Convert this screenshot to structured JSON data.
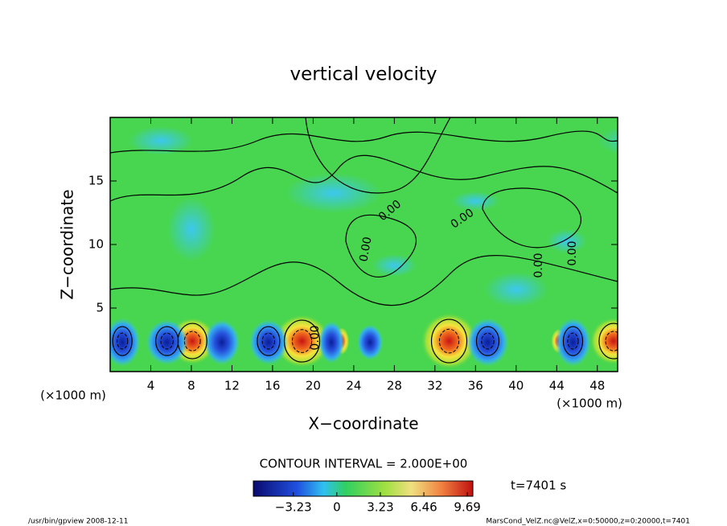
{
  "chart_data": {
    "type": "contour",
    "title": "vertical velocity",
    "x_label": "X−coordinate",
    "y_label": "Z−coordinate",
    "x_unit": "(×1000 m)",
    "xlim": [
      0,
      50
    ],
    "xticks": [
      4,
      8,
      12,
      16,
      20,
      24,
      28,
      32,
      36,
      40,
      44,
      48
    ],
    "ylim": [
      0,
      20
    ],
    "yticks": [
      5,
      10,
      15
    ],
    "contour_label": "0.00",
    "contour_interval": "CONTOUR INTERVAL = 2.000E+00",
    "time_label": "t=7401 s",
    "colorbar": {
      "lim": [
        -6.2,
        10.1
      ],
      "ticks": [
        {
          "value": -3.23,
          "label": "−3.23"
        },
        0,
        3.23,
        6.46,
        9.69
      ]
    },
    "footer_left": "/usr/bin/gpview  2008-12-11",
    "footer_right": "MarsCond_VelZ.nc@VelZ,x=0:50000,z=0:20000,t=7401"
  }
}
